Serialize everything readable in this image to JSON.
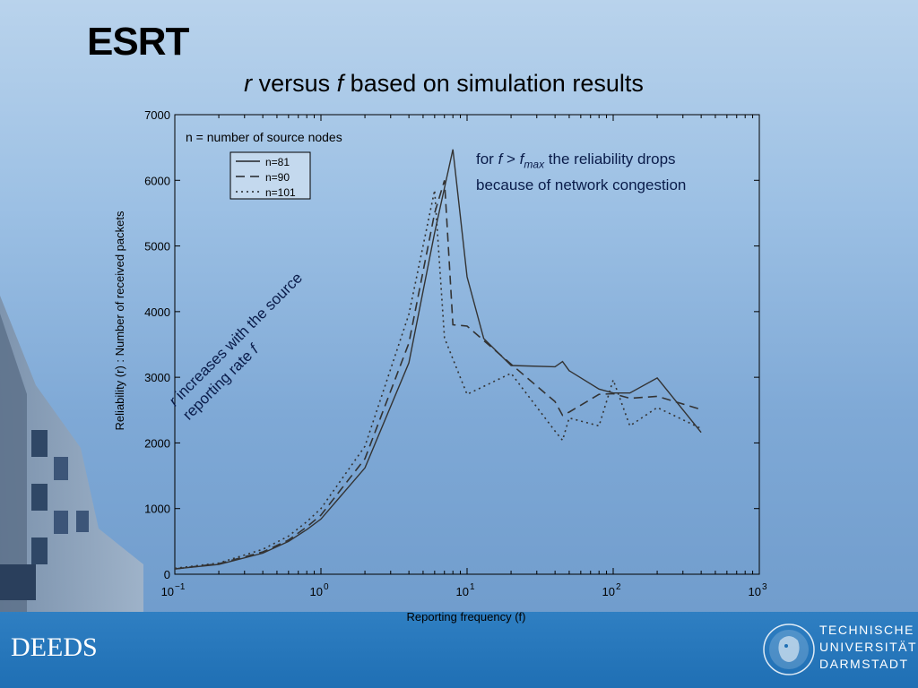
{
  "slide": {
    "title": "ESRT",
    "subtitle_r": "r",
    "subtitle_mid": " versus ",
    "subtitle_f": "f",
    "subtitle_rest": "  based on simulation results"
  },
  "annotations": {
    "nodes_note": "n = number of source nodes",
    "drop_for": "for ",
    "drop_f": "f",
    "drop_gt": " > ",
    "drop_fmax_f": "f",
    "drop_fmax_sub": "max",
    "drop_rest": " the reliability drops because of network congestion",
    "increase_r": "r",
    "increase_text": " increases with the source reporting rate ",
    "increase_f": "f"
  },
  "footer": {
    "left_text": "DEEDS",
    "logo_line1": "TECHNISCHE",
    "logo_line2": "UNIVERSITÄT",
    "logo_line3": "DARMSTADT"
  },
  "chart_data": {
    "type": "line",
    "xscale": "log",
    "xlabel": "Reporting frequency (f)",
    "ylabel": "Reliability (r) : Number of received packets",
    "xlim": [
      0.1,
      1000
    ],
    "ylim": [
      0,
      7000
    ],
    "xticks": [
      {
        "base": "10",
        "exp": "−1"
      },
      {
        "base": "10",
        "exp": "0"
      },
      {
        "base": "10",
        "exp": "1"
      },
      {
        "base": "10",
        "exp": "2"
      },
      {
        "base": "10",
        "exp": "3"
      }
    ],
    "yticks": [
      "0",
      "1000",
      "2000",
      "3000",
      "4000",
      "5000",
      "6000",
      "7000"
    ],
    "series": [
      {
        "name": "n=81",
        "dash": "solid",
        "x": [
          0.1,
          0.2,
          0.4,
          0.6,
          0.8,
          1,
          2,
          4,
          6,
          8,
          10,
          13,
          20,
          40,
          45,
          50,
          80,
          100,
          130,
          200,
          400
        ],
        "y": [
          80,
          150,
          320,
          500,
          680,
          840,
          1620,
          3220,
          5200,
          6470,
          4530,
          3590,
          3180,
          3160,
          3240,
          3100,
          2820,
          2760,
          2760,
          2990,
          2160
        ]
      },
      {
        "name": "n=90",
        "dash": "dashed",
        "x": [
          0.1,
          0.2,
          0.4,
          0.6,
          0.8,
          1,
          2,
          4,
          6,
          7,
          8,
          10,
          20,
          40,
          45,
          50,
          80,
          100,
          130,
          200,
          400
        ],
        "y": [
          80,
          160,
          340,
          520,
          720,
          900,
          1760,
          3520,
          5500,
          6000,
          3800,
          3780,
          3200,
          2630,
          2420,
          2470,
          2740,
          2750,
          2680,
          2710,
          2510
        ]
      },
      {
        "name": "n=101",
        "dash": "dotted",
        "x": [
          0.1,
          0.2,
          0.4,
          0.6,
          0.8,
          1,
          2,
          4,
          5,
          6,
          7,
          10,
          20,
          40,
          45,
          50,
          80,
          100,
          130,
          200,
          400
        ],
        "y": [
          90,
          170,
          380,
          580,
          800,
          1000,
          1950,
          3960,
          5000,
          5850,
          3600,
          2740,
          3060,
          2180,
          2040,
          2380,
          2260,
          2960,
          2260,
          2540,
          2220
        ]
      }
    ]
  },
  "colors": {
    "footer": "#1f6fb4",
    "plot_line": "#333333",
    "annotation_text": "#0a1c4a"
  }
}
